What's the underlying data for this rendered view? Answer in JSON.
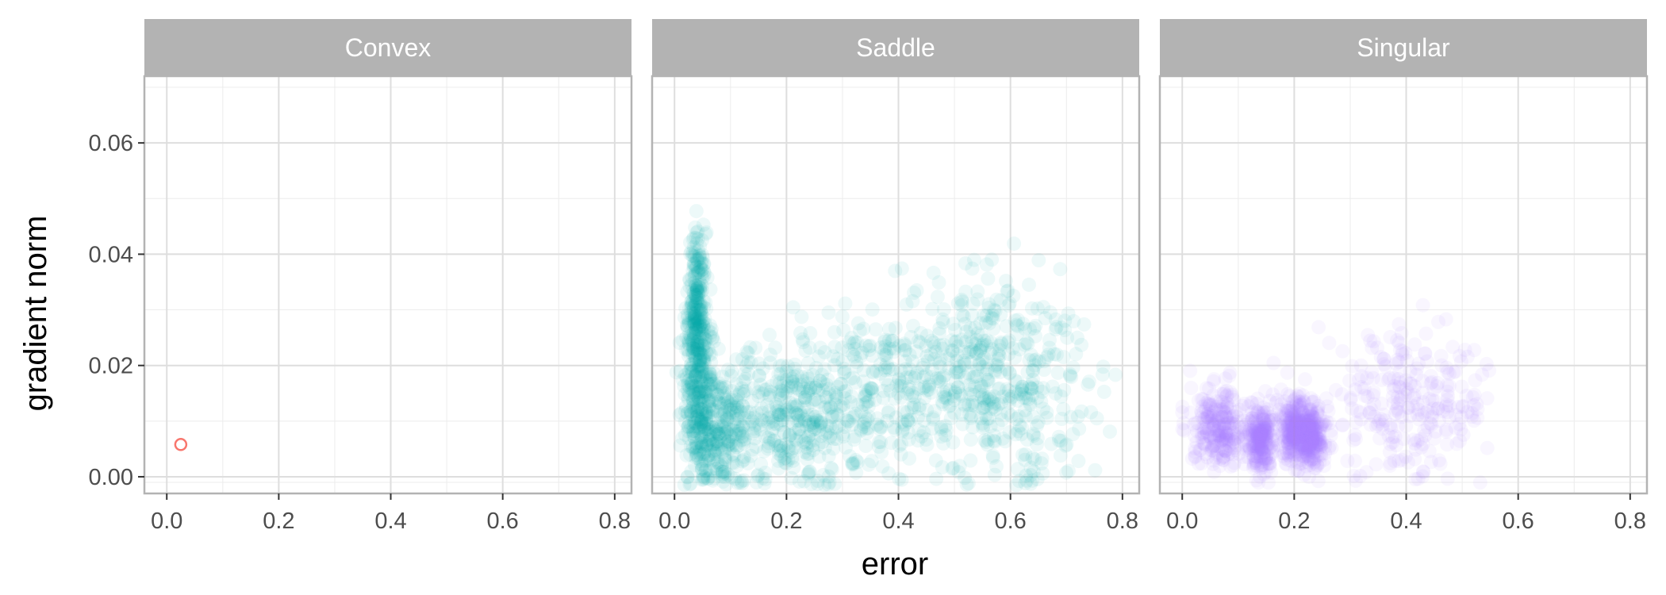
{
  "chart_data": {
    "type": "scatter",
    "xlabel": "error",
    "ylabel": "gradient norm",
    "xlim": [
      -0.04,
      0.83
    ],
    "ylim": [
      -0.003,
      0.072
    ],
    "x_ticks": [
      "0.0",
      "0.2",
      "0.4",
      "0.6",
      "0.8"
    ],
    "x_tick_values": [
      0,
      0.2,
      0.4,
      0.6,
      0.8
    ],
    "y_ticks": [
      "0.00",
      "0.02",
      "0.04",
      "0.06"
    ],
    "y_tick_values": [
      0,
      0.02,
      0.04,
      0.06
    ],
    "grid": true,
    "facets": [
      {
        "name": "Convex",
        "color": "#F8766D",
        "points": [
          {
            "x": 0.025,
            "y": 0.0058
          }
        ]
      },
      {
        "name": "Saddle",
        "color": "#00A9A4",
        "clusters": [
          {
            "x": 0.045,
            "y": 0.015,
            "sx": 0.014,
            "sy": 0.008
          },
          {
            "x": 0.04,
            "y": 0.03,
            "sx": 0.008,
            "sy": 0.007
          },
          {
            "x": 0.08,
            "y": 0.008,
            "sx": 0.03,
            "sy": 0.005
          },
          {
            "x": 0.2,
            "y": 0.01,
            "sx": 0.06,
            "sy": 0.006
          },
          {
            "x": 0.33,
            "y": 0.015,
            "sx": 0.09,
            "sy": 0.007
          },
          {
            "x": 0.5,
            "y": 0.019,
            "sx": 0.1,
            "sy": 0.008
          },
          {
            "x": 0.6,
            "y": 0.016,
            "sx": 0.07,
            "sy": 0.009
          }
        ]
      },
      {
        "name": "Singular",
        "color": "#A37BFF",
        "clusters": [
          {
            "x": 0.065,
            "y": 0.009,
            "sx": 0.025,
            "sy": 0.0035
          },
          {
            "x": 0.14,
            "y": 0.007,
            "sx": 0.012,
            "sy": 0.003
          },
          {
            "x": 0.2,
            "y": 0.0085,
            "sx": 0.015,
            "sy": 0.003
          },
          {
            "x": 0.23,
            "y": 0.007,
            "sx": 0.015,
            "sy": 0.0025
          },
          {
            "x": 0.4,
            "y": 0.013,
            "sx": 0.08,
            "sy": 0.006
          }
        ]
      }
    ]
  }
}
